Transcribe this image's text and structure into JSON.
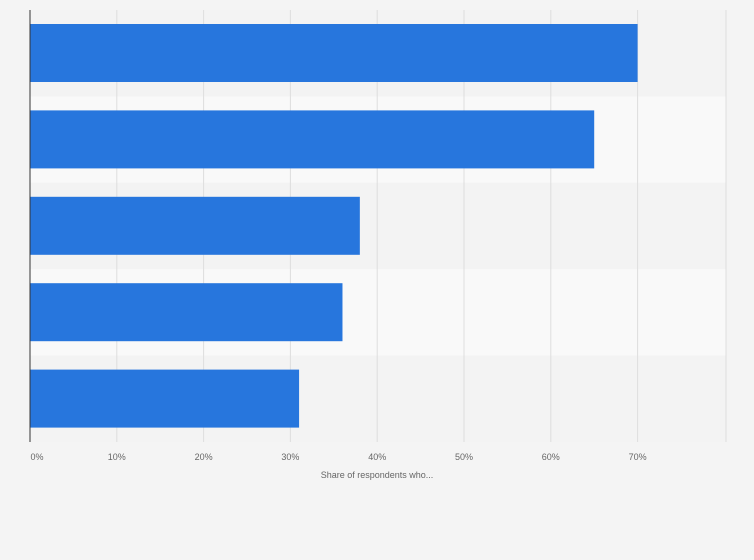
{
  "chart_data": {
    "type": "bar",
    "orientation": "horizontal",
    "categories": [
      "",
      "",
      "",
      "",
      ""
    ],
    "values": [
      70,
      65,
      38,
      36,
      31
    ],
    "xlabel": "Share of respondents who...",
    "ylabel": "",
    "xlim": [
      0,
      80
    ],
    "x_ticks": [
      0,
      10,
      20,
      30,
      40,
      50,
      60,
      70
    ],
    "tick_labels": [
      "0%",
      "10%",
      "20%",
      "30%",
      "40%",
      "50%",
      "60%",
      "70%"
    ],
    "grid": true,
    "legend": "none",
    "colors": {
      "bar": "#2776dd",
      "band_dark": "#f3f3f3",
      "band_light": "#f9f9f9",
      "grid": "#dedede",
      "axis": "#333333",
      "tick_text": "#666666"
    }
  }
}
